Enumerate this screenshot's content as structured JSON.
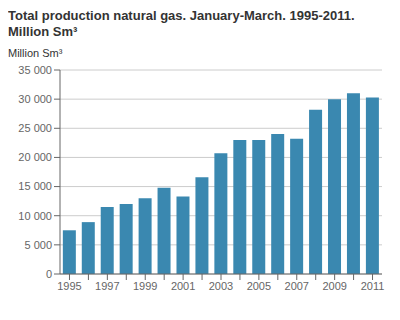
{
  "chart_data": {
    "type": "bar",
    "title": "Total production natural gas. January-March. 1995-2011. Million Sm³",
    "y_label": "Million Sm³",
    "categories": [
      "1995",
      null,
      "1997",
      null,
      "1999",
      null,
      "2001",
      null,
      "2003",
      null,
      "2005",
      null,
      "2007",
      null,
      "2009",
      null,
      "2011"
    ],
    "values": [
      7500,
      8900,
      11500,
      12000,
      13000,
      14800,
      13300,
      16600,
      20700,
      23000,
      23000,
      24000,
      23200,
      28200,
      30000,
      31000,
      30300
    ],
    "color": "#3a88b0",
    "ylim": [
      0,
      35000
    ],
    "yticks": [
      0,
      {
        "value": 5000,
        "label": "5 000"
      },
      {
        "value": 10000,
        "label": "10 000"
      },
      {
        "value": 15000,
        "label": "15 000"
      },
      {
        "value": 20000,
        "label": "20 000"
      },
      {
        "value": 25000,
        "label": "25 000"
      },
      {
        "value": 30000,
        "label": "30 000"
      },
      {
        "value": 35000,
        "label": "35 000"
      }
    ],
    "grid": true
  }
}
